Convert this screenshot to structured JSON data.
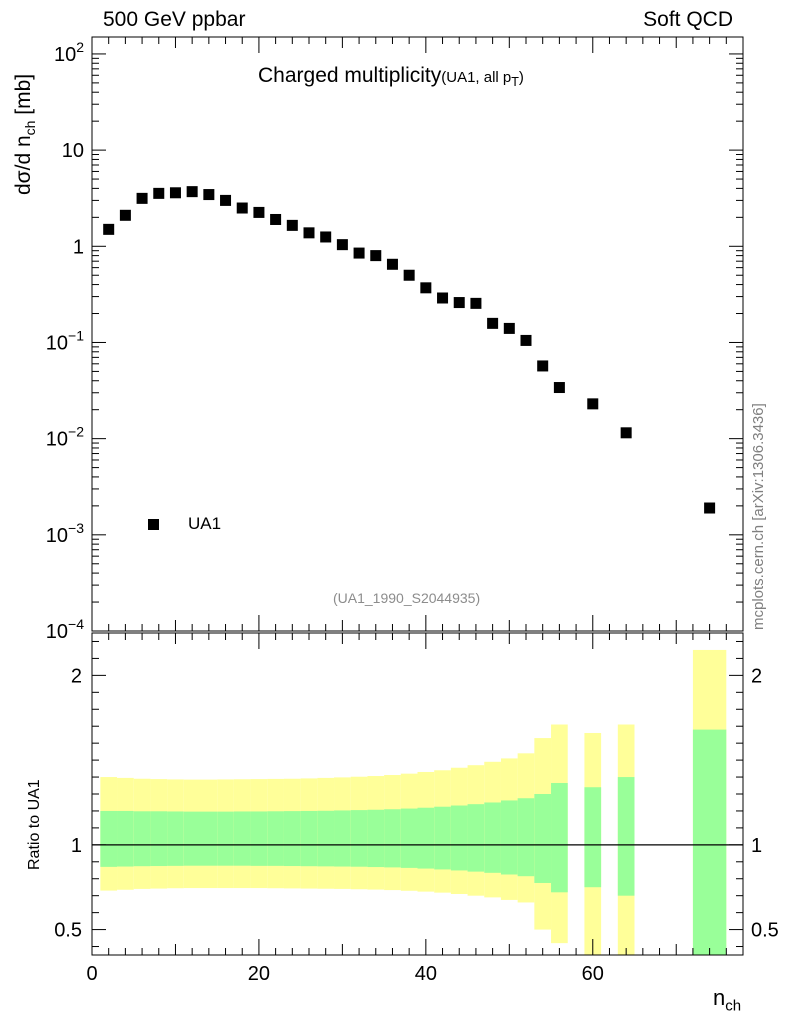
{
  "header": {
    "left": "500 GeV ppbar",
    "right": "Soft QCD"
  },
  "title": {
    "main": "Charged multiplicity",
    "sub": "(UA1, all p",
    "sub_index": "T",
    "sub_close": ")"
  },
  "ylabel_main": {
    "text": "dσ/d n",
    "sub": "ch",
    "unit": " [mb]"
  },
  "ylabel_ratio": "Ratio to UA1",
  "side_label": "mcplots.cern.ch [arXiv:1306.3436]",
  "analysis_label": "(UA1_1990_S2044935)",
  "xlabel": {
    "text": "n",
    "sub": "ch"
  },
  "legend": {
    "label": "UA1"
  },
  "colors": {
    "yellow_band": "#ffff99",
    "green_band": "#99ff99",
    "marker": "#000000"
  },
  "chart_data": [
    {
      "type": "scatter",
      "yscale": "log",
      "title": "Charged multiplicity (UA1, all pT)",
      "xlabel": "n_ch",
      "ylabel": "dσ/d n_ch [mb]",
      "xlim": [
        0,
        78
      ],
      "ylim": [
        0.0001,
        150
      ],
      "yticks": [
        {
          "value": 0.0001,
          "base": "10",
          "exp": "−4"
        },
        {
          "value": 0.001,
          "base": "10",
          "exp": "−3"
        },
        {
          "value": 0.01,
          "base": "10",
          "exp": "−2"
        },
        {
          "value": 0.1,
          "base": "10",
          "exp": "−1"
        },
        {
          "value": 1,
          "base": "1",
          "exp": ""
        },
        {
          "value": 10,
          "base": "10",
          "exp": ""
        },
        {
          "value": 100,
          "base": "10",
          "exp": "2"
        }
      ],
      "series": [
        {
          "name": "UA1",
          "x": [
            2,
            4,
            6,
            8,
            10,
            12,
            14,
            16,
            18,
            20,
            22,
            24,
            26,
            28,
            30,
            32,
            34,
            36,
            38,
            40,
            42,
            44,
            46,
            48,
            50,
            52,
            54,
            56,
            60,
            64,
            74
          ],
          "y": [
            1.5,
            2.1,
            3.15,
            3.55,
            3.6,
            3.7,
            3.45,
            3.0,
            2.5,
            2.25,
            1.9,
            1.65,
            1.38,
            1.25,
            1.04,
            0.85,
            0.8,
            0.65,
            0.5,
            0.37,
            0.29,
            0.26,
            0.255,
            0.158,
            0.14,
            0.105,
            0.057,
            0.034,
            0.023,
            0.0115,
            0.0019
          ]
        }
      ]
    },
    {
      "type": "area",
      "title": "Ratio to UA1",
      "xlabel": "n_ch",
      "ylabel": "Ratio to UA1",
      "xlim": [
        0,
        78
      ],
      "ylim": [
        0.35,
        2.25
      ],
      "xticks": [
        0,
        20,
        40,
        60
      ],
      "yticks": [
        0.5,
        1,
        2
      ],
      "reference_line": 1,
      "bins": [
        {
          "lo": 1,
          "hi": 3,
          "y_lo": 0.73,
          "y_hi": 1.4,
          "g_lo": 0.87,
          "g_hi": 1.2
        },
        {
          "lo": 3,
          "hi": 5,
          "y_lo": 0.735,
          "y_hi": 1.395,
          "g_lo": 0.872,
          "g_hi": 1.2
        },
        {
          "lo": 5,
          "hi": 7,
          "y_lo": 0.74,
          "y_hi": 1.39,
          "g_lo": 0.874,
          "g_hi": 1.198
        },
        {
          "lo": 7,
          "hi": 9,
          "y_lo": 0.742,
          "y_hi": 1.388,
          "g_lo": 0.875,
          "g_hi": 1.198
        },
        {
          "lo": 9,
          "hi": 11,
          "y_lo": 0.744,
          "y_hi": 1.386,
          "g_lo": 0.876,
          "g_hi": 1.197
        },
        {
          "lo": 11,
          "hi": 13,
          "y_lo": 0.745,
          "y_hi": 1.385,
          "g_lo": 0.877,
          "g_hi": 1.196
        },
        {
          "lo": 13,
          "hi": 15,
          "y_lo": 0.745,
          "y_hi": 1.385,
          "g_lo": 0.877,
          "g_hi": 1.196
        },
        {
          "lo": 15,
          "hi": 17,
          "y_lo": 0.745,
          "y_hi": 1.386,
          "g_lo": 0.877,
          "g_hi": 1.196
        },
        {
          "lo": 17,
          "hi": 19,
          "y_lo": 0.745,
          "y_hi": 1.387,
          "g_lo": 0.877,
          "g_hi": 1.197
        },
        {
          "lo": 19,
          "hi": 21,
          "y_lo": 0.745,
          "y_hi": 1.388,
          "g_lo": 0.876,
          "g_hi": 1.197
        },
        {
          "lo": 21,
          "hi": 23,
          "y_lo": 0.744,
          "y_hi": 1.389,
          "g_lo": 0.876,
          "g_hi": 1.198
        },
        {
          "lo": 23,
          "hi": 25,
          "y_lo": 0.743,
          "y_hi": 1.39,
          "g_lo": 0.875,
          "g_hi": 1.199
        },
        {
          "lo": 25,
          "hi": 27,
          "y_lo": 0.742,
          "y_hi": 1.392,
          "g_lo": 0.874,
          "g_hi": 1.2
        },
        {
          "lo": 27,
          "hi": 29,
          "y_lo": 0.741,
          "y_hi": 1.395,
          "g_lo": 0.873,
          "g_hi": 1.201
        },
        {
          "lo": 29,
          "hi": 31,
          "y_lo": 0.74,
          "y_hi": 1.398,
          "g_lo": 0.872,
          "g_hi": 1.203
        },
        {
          "lo": 31,
          "hi": 33,
          "y_lo": 0.738,
          "y_hi": 1.402,
          "g_lo": 0.871,
          "g_hi": 1.205
        },
        {
          "lo": 33,
          "hi": 35,
          "y_lo": 0.736,
          "y_hi": 1.406,
          "g_lo": 0.869,
          "g_hi": 1.207
        },
        {
          "lo": 35,
          "hi": 37,
          "y_lo": 0.733,
          "y_hi": 1.412,
          "g_lo": 0.867,
          "g_hi": 1.21
        },
        {
          "lo": 37,
          "hi": 39,
          "y_lo": 0.729,
          "y_hi": 1.42,
          "g_lo": 0.864,
          "g_hi": 1.214
        },
        {
          "lo": 39,
          "hi": 41,
          "y_lo": 0.724,
          "y_hi": 1.43,
          "g_lo": 0.86,
          "g_hi": 1.219
        },
        {
          "lo": 41,
          "hi": 43,
          "y_lo": 0.718,
          "y_hi": 1.44,
          "g_lo": 0.855,
          "g_hi": 1.225
        },
        {
          "lo": 43,
          "hi": 45,
          "y_lo": 0.71,
          "y_hi": 1.455,
          "g_lo": 0.849,
          "g_hi": 1.232
        },
        {
          "lo": 45,
          "hi": 47,
          "y_lo": 0.7,
          "y_hi": 1.47,
          "g_lo": 0.842,
          "g_hi": 1.24
        },
        {
          "lo": 47,
          "hi": 49,
          "y_lo": 0.69,
          "y_hi": 1.49,
          "g_lo": 0.835,
          "g_hi": 1.25
        },
        {
          "lo": 49,
          "hi": 51,
          "y_lo": 0.675,
          "y_hi": 1.51,
          "g_lo": 0.825,
          "g_hi": 1.262
        },
        {
          "lo": 51,
          "hi": 53,
          "y_lo": 0.66,
          "y_hi": 1.54,
          "g_lo": 0.815,
          "g_hi": 1.275
        },
        {
          "lo": 53,
          "hi": 55,
          "y_lo": 0.5,
          "y_hi": 1.63,
          "g_lo": 0.775,
          "g_hi": 1.3
        },
        {
          "lo": 55,
          "hi": 57,
          "y_lo": 0.42,
          "y_hi": 1.71,
          "g_lo": 0.72,
          "g_hi": 1.365
        },
        {
          "lo": 59,
          "hi": 61,
          "y_lo": 0.3,
          "y_hi": 1.66,
          "g_lo": 0.75,
          "g_hi": 1.34
        },
        {
          "lo": 63,
          "hi": 65,
          "y_lo": 0.3,
          "y_hi": 1.71,
          "g_lo": 0.7,
          "g_hi": 1.4
        },
        {
          "lo": 72,
          "hi": 76,
          "y_lo": 0.3,
          "y_hi": 2.15,
          "g_lo": 0.3,
          "g_hi": 1.68
        }
      ]
    }
  ]
}
